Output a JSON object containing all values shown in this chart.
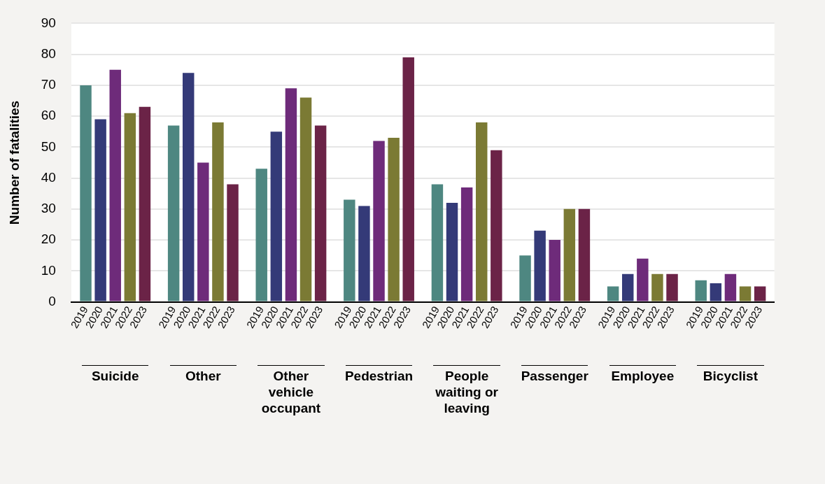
{
  "chart_data": {
    "type": "bar",
    "ylabel": "Number of fatalities",
    "categories": [
      "Suicide",
      "Other",
      "Other vehicle occupant",
      "Pedestrian",
      "People waiting or leaving",
      "Passenger",
      "Employee",
      "Bicyclist"
    ],
    "series": [
      {
        "name": "2019",
        "color": "#4e8781",
        "values": [
          70,
          57,
          43,
          33,
          38,
          15,
          5,
          7
        ]
      },
      {
        "name": "2020",
        "color": "#343a78",
        "values": [
          59,
          74,
          55,
          31,
          32,
          23,
          9,
          6
        ]
      },
      {
        "name": "2021",
        "color": "#6e2b7a",
        "values": [
          75,
          45,
          69,
          52,
          37,
          20,
          14,
          9
        ]
      },
      {
        "name": "2022",
        "color": "#7b7a34",
        "values": [
          61,
          58,
          66,
          53,
          58,
          30,
          9,
          5
        ]
      },
      {
        "name": "2023",
        "color": "#6b2347",
        "values": [
          63,
          38,
          57,
          79,
          49,
          30,
          9,
          5
        ]
      }
    ],
    "ylim": [
      0,
      90
    ],
    "yticks": [
      0,
      10,
      20,
      30,
      40,
      50,
      60,
      70,
      80,
      90
    ],
    "grid": "y",
    "legend": false
  }
}
